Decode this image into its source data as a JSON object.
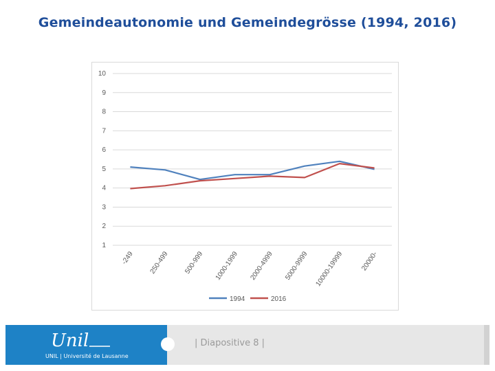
{
  "slide": {
    "title": "Gemeindeautonomie und Gemeindegrösse (1994, 2016)",
    "number_label": "| Diapositive 8 |"
  },
  "logo": {
    "wordmark": "Unil",
    "subtitle": "UNIL | Université de Lausanne"
  },
  "colors": {
    "title": "#1f4e9a",
    "footer_blue": "#1e82c6",
    "series_1994": "#4f81bd",
    "series_2016": "#c0504d"
  },
  "chart_data": {
    "type": "line",
    "title": "",
    "xlabel": "",
    "ylabel": "",
    "ylim": [
      1,
      10
    ],
    "yticks": [
      1,
      2,
      3,
      4,
      5,
      6,
      7,
      8,
      9,
      10
    ],
    "grid": true,
    "legend_position": "bottom",
    "categories": [
      "-249",
      "250-499",
      "500-999",
      "1000-1999",
      "2000-4999",
      "5000-9999",
      "10000-19999",
      "20000-"
    ],
    "series": [
      {
        "name": "1994",
        "color": "#4f81bd",
        "values": [
          5.1,
          4.95,
          4.45,
          4.7,
          4.7,
          5.15,
          5.4,
          4.98
        ]
      },
      {
        "name": "2016",
        "color": "#c0504d",
        "values": [
          3.97,
          4.12,
          4.38,
          4.5,
          4.62,
          4.55,
          5.28,
          5.05
        ]
      }
    ]
  }
}
